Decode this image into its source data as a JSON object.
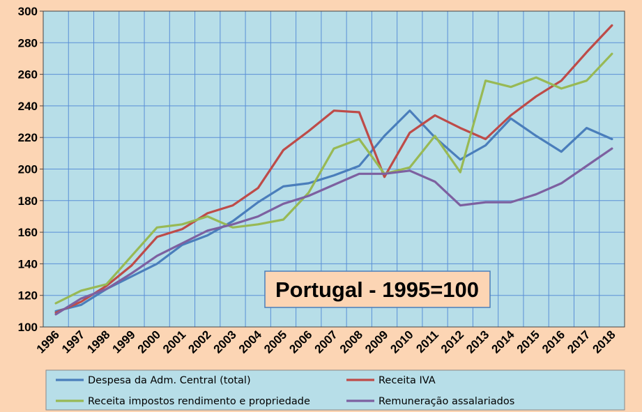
{
  "chart_data": {
    "type": "line",
    "title": "Portugal - 1995=100",
    "xlabel": "",
    "ylabel": "",
    "categories": [
      "1996",
      "1997",
      "1998",
      "1999",
      "2000",
      "2001",
      "2002",
      "2003",
      "2004",
      "2005",
      "2006",
      "2007",
      "2008",
      "2009",
      "2010",
      "2011",
      "2012",
      "2013",
      "2014",
      "2015",
      "2016",
      "2017",
      "2018"
    ],
    "ylim": [
      100,
      300
    ],
    "yticks": [
      100,
      120,
      140,
      160,
      180,
      200,
      220,
      240,
      260,
      280,
      300
    ],
    "grid": true,
    "legend_position": "bottom",
    "series": [
      {
        "name": "Despesa da Adm. Central (total)",
        "color": "#4a7ebb",
        "values": [
          110,
          114,
          124,
          132,
          140,
          152,
          158,
          167,
          179,
          189,
          191,
          196,
          202,
          221,
          237,
          220,
          206,
          215,
          232,
          221,
          211,
          226,
          219
        ]
      },
      {
        "name": "Receita IVA",
        "color": "#be4b48",
        "values": [
          109,
          116,
          126,
          139,
          157,
          162,
          172,
          177,
          188,
          212,
          224,
          237,
          236,
          195,
          223,
          234,
          226,
          219,
          234,
          246,
          256,
          274,
          291
        ]
      },
      {
        "name": "Receita impostos rendimento e propriedade",
        "color": "#98b954",
        "values": [
          115,
          123,
          127,
          145,
          163,
          165,
          170,
          163,
          165,
          168,
          185,
          213,
          219,
          197,
          201,
          221,
          198,
          256,
          252,
          258,
          251,
          256,
          273
        ]
      },
      {
        "name": "Remuneração assalariados",
        "color": "#7d60a0",
        "values": [
          108,
          118,
          124,
          134,
          145,
          153,
          161,
          165,
          170,
          178,
          183,
          190,
          197,
          197,
          199,
          192,
          177,
          179,
          179,
          184,
          191,
          202,
          213
        ]
      }
    ]
  }
}
